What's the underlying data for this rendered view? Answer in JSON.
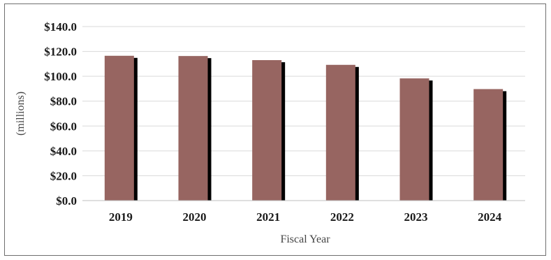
{
  "chart_data": {
    "type": "bar",
    "title": "",
    "xlabel": "Fiscal Year",
    "ylabel": "(millions)",
    "categories": [
      "2019",
      "2020",
      "2021",
      "2022",
      "2023",
      "2024"
    ],
    "series": [
      {
        "values": [
          116.5,
          116.3,
          113.0,
          109.2,
          98.3,
          89.7
        ]
      }
    ],
    "ylim": [
      0,
      140
    ],
    "yticks": [
      "$0.0",
      "$20.0",
      "$40.0",
      "$60.0",
      "$80.0",
      "$100.0",
      "$120.0",
      "$140.0"
    ],
    "grid": true,
    "bar_color": "#976561",
    "shadow_color": "#000000",
    "gridline_color": "#d9d9d9"
  }
}
